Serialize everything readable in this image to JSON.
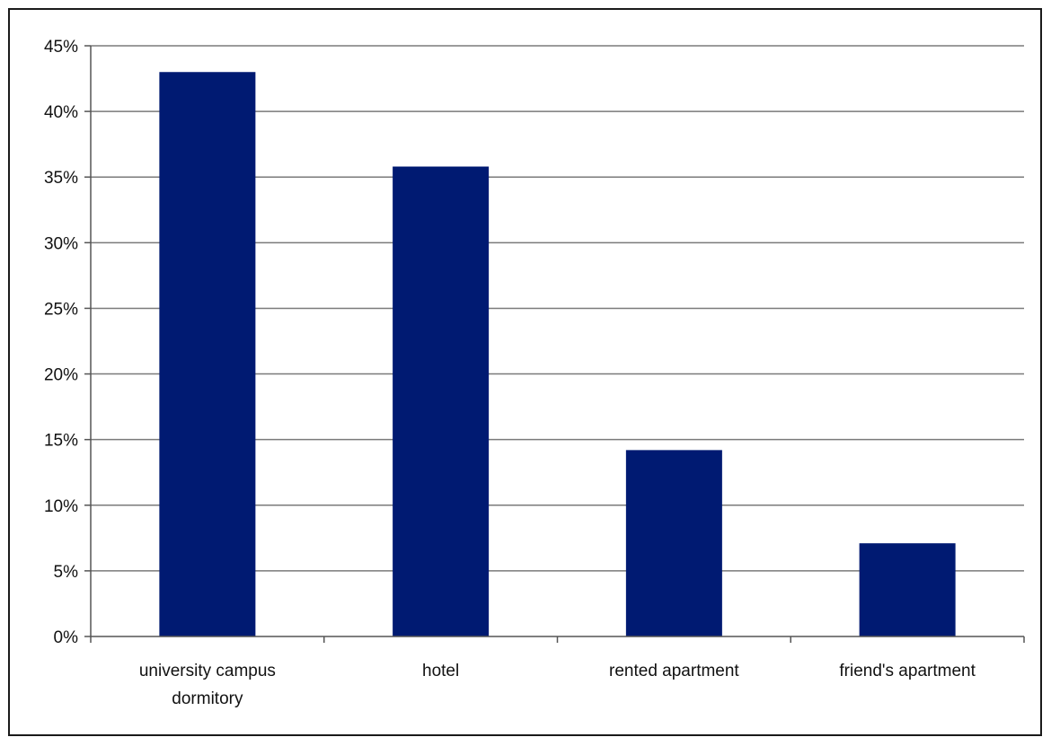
{
  "chart_data": {
    "type": "bar",
    "categories": [
      [
        "university campus",
        "dormitory"
      ],
      [
        "hotel"
      ],
      [
        "rented apartment"
      ],
      [
        "friend's apartment"
      ]
    ],
    "values": [
      43,
      35.8,
      14.2,
      7.1
    ],
    "ylim": [
      0,
      45
    ],
    "ytick_step": 5,
    "ytick_labels": [
      "0%",
      "5%",
      "10%",
      "15%",
      "20%",
      "25%",
      "30%",
      "35%",
      "40%",
      "45%"
    ],
    "grid": true,
    "legend": "none",
    "colors": {
      "bar": "#001a72",
      "grid": "#7a7a7a",
      "axis": "#555555"
    }
  }
}
